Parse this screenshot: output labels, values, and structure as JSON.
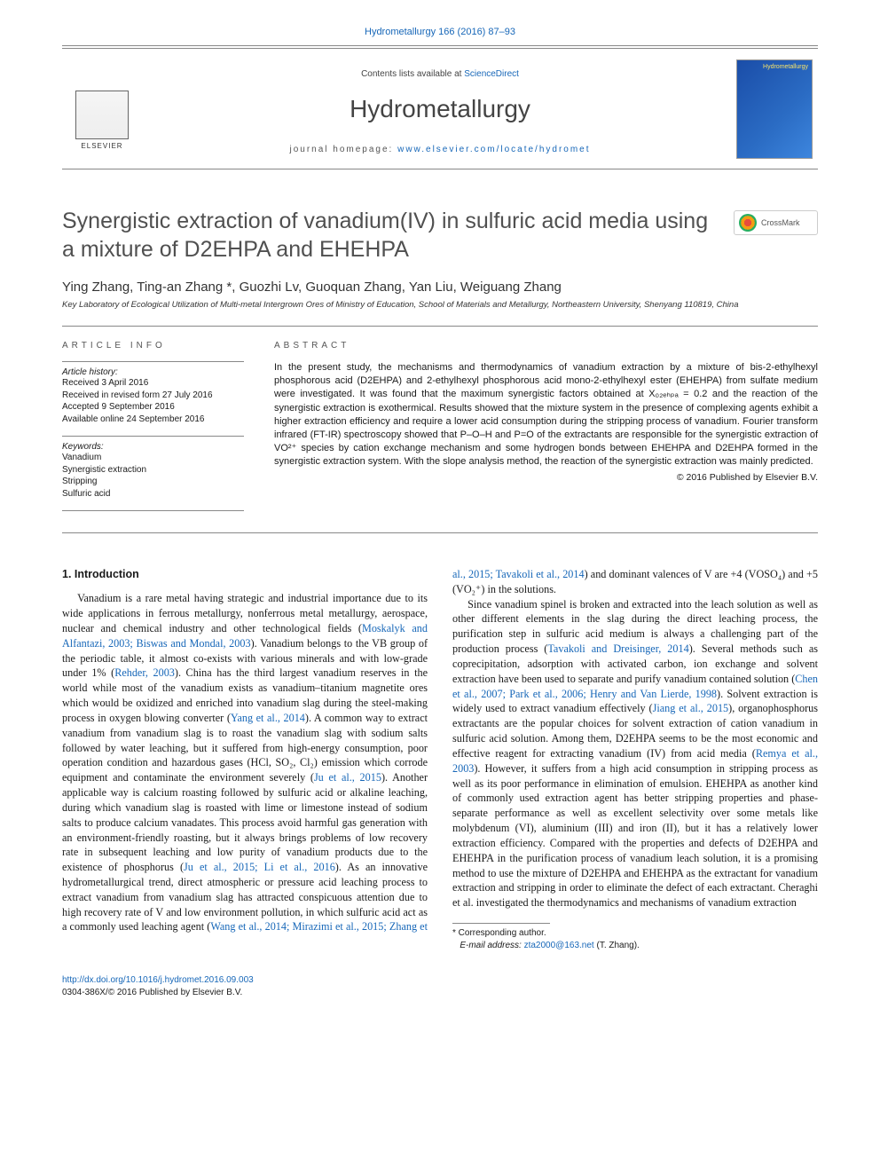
{
  "colors": {
    "link": "#1767b8",
    "body_text": "#1a1a1a",
    "muted": "#505050",
    "rule": "#888888",
    "background": "#ffffff",
    "cover_gradient": [
      "#1a4da8",
      "#2b6cc4",
      "#3d86de"
    ],
    "cover_label": "#f7e36a"
  },
  "typography": {
    "body_font": "Georgia, serif",
    "ui_font": "Arial, sans-serif",
    "title_size_pt": 19,
    "journal_name_size_pt": 21,
    "body_size_pt": 9,
    "abstract_size_pt": 8,
    "small_size_pt": 7
  },
  "top_link": "Hydrometallurgy 166 (2016) 87–93",
  "masthead": {
    "contents_prefix": "Contents lists available at ",
    "contents_link": "ScienceDirect",
    "journal_name": "Hydrometallurgy",
    "homepage_prefix": "journal homepage: ",
    "homepage_link": "www.elsevier.com/locate/hydromet",
    "publisher_logo_text": "ELSEVIER",
    "cover_label": "Hydrometallurgy"
  },
  "crossmark_label": "CrossMark",
  "title": "Synergistic extraction of vanadium(IV) in sulfuric acid media using a mixture of D2EHPA and EHEHPA",
  "authors": "Ying Zhang, Ting-an Zhang *, Guozhi Lv, Guoquan Zhang, Yan Liu, Weiguang Zhang",
  "affiliation": "Key Laboratory of Ecological Utilization of Multi-metal Intergrown Ores of Ministry of Education, School of Materials and Metallurgy, Northeastern University, Shenyang 110819, China",
  "article_info": {
    "heading": "article info",
    "history_label": "Article history:",
    "history": [
      "Received 3 April 2016",
      "Received in revised form 27 July 2016",
      "Accepted 9 September 2016",
      "Available online 24 September 2016"
    ],
    "keywords_label": "Keywords:",
    "keywords": [
      "Vanadium",
      "Synergistic extraction",
      "Stripping",
      "Sulfuric acid"
    ]
  },
  "abstract": {
    "heading": "abstract",
    "text": "In the present study, the mechanisms and thermodynamics of vanadium extraction by a mixture of bis-2-ethylhexyl phosphorous acid (D2EHPA) and 2-ethylhexyl phosphorous acid mono-2-ethylhexyl ester (EHEHPA) from sulfate medium were investigated. It was found that the maximum synergistic factors obtained at X₀₂ₑₕₚₐ = 0.2 and the reaction of the synergistic extraction is exothermical. Results showed that the mixture system in the presence of complexing agents exhibit a higher extraction efficiency and require a lower acid consumption during the stripping process of vanadium. Fourier transform infrared (FT-IR) spectroscopy showed that P–O–H and P=O of the extractants are responsible for the synergistic extraction of VO²⁺ species by cation exchange mechanism and some hydrogen bonds between EHEHPA and D2EHPA formed in the synergistic extraction system. With the slope analysis method, the reaction of the synergistic extraction was mainly predicted.",
    "copyright": "© 2016 Published by Elsevier B.V."
  },
  "section1": {
    "heading": "1. Introduction",
    "p1_a": "Vanadium is a rare metal having strategic and industrial importance due to its wide applications in ferrous metallurgy, nonferrous metal metallurgy, aerospace, nuclear and chemical industry and other technological fields (",
    "p1_ref1": "Moskalyk and Alfantazi, 2003; Biswas and Mondal, 2003",
    "p1_b": "). Vanadium belongs to the VB group of the periodic table, it almost co-exists with various minerals and with low-grade under 1% (",
    "p1_ref2": "Rehder, 2003",
    "p1_c": "). China has the third largest vanadium reserves in the world while most of the vanadium exists as vanadium–titanium magnetite ores which would be oxidized and enriched into vanadium slag during the steel-making process in oxygen blowing converter (",
    "p1_ref3": "Yang et al., 2014",
    "p1_d": "). A common way to extract vanadium from vanadium slag is to roast the vanadium slag with sodium salts followed by water leaching, but it suffered from high-energy consumption, poor operation condition and hazardous gases (HCl, SO₂, Cl₂) emission which corrode equipment and contaminate the environment severely (",
    "p1_ref4": "Ju et al., 2015",
    "p1_e": "). Another applicable way is calcium roasting followed by sulfuric acid or alkaline leaching, during which vanadium slag is roasted with lime or limestone instead of sodium salts to produce calcium vanadates. This process avoid harmful gas generation with an environment-friendly roasting, but it always brings problems of low recovery rate in subsequent leaching and low purity of vanadium products due to the existence of phosphorus (",
    "p1_ref5": "Ju et al., 2015; Li et al., 2016",
    "p1_f": "). As an innovative hydrometallurgical trend, direct atmospheric or pressure acid leaching process to extract vanadium from vanadium slag has attracted conspicuous attention due to high recovery rate of V and low environment pollution, in which sulfuric acid act as a commonly used leaching agent (",
    "p1_ref6": "Wang et al., 2014; Mirazimi et al., 2015; Zhang et al., 2015; Tavakoli et al., 2014",
    "p1_g": ") and dominant valences of V are +4 (VOSO₄) and +5 (VO₂⁺) in the solutions.",
    "p2_a": "Since vanadium spinel is broken and extracted into the leach solution as well as other different elements in the slag during the direct leaching process, the purification step in sulfuric acid medium is always a challenging part of the production process (",
    "p2_ref1": "Tavakoli and Dreisinger, 2014",
    "p2_b": "). Several methods such as coprecipitation, adsorption with activated carbon, ion exchange and solvent extraction have been used to separate and purify vanadium contained solution (",
    "p2_ref2": "Chen et al., 2007; Park et al., 2006; Henry and Van Lierde, 1998",
    "p2_c": "). Solvent extraction is widely used to extract vanadium effectively (",
    "p2_ref3": "Jiang et al., 2015",
    "p2_d": "), organophosphorus extractants are the popular choices for solvent extraction of cation vanadium in sulfuric acid solution. Among them, D2EHPA seems to be the most economic and effective reagent for extracting vanadium (IV) from acid media (",
    "p2_ref4": "Remya et al., 2003",
    "p2_e": "). However, it suffers from a high acid consumption in stripping process as well as its poor performance in elimination of emulsion. EHEHPA as another kind of commonly used extraction agent has better stripping properties and phase-separate performance as well as excellent selectivity over some metals like molybdenum (VI), aluminium (III) and iron (II), but it has a relatively lower extraction efficiency. Compared with the properties and defects of D2EHPA and EHEHPA in the purification process of vanadium leach solution, it is a promising method to use the mixture of D2EHPA and EHEHPA as the extractant for vanadium extraction and stripping in order to eliminate the defect of each extractant. Cheraghi et al. investigated the thermodynamics and mechanisms of vanadium extraction"
  },
  "footnote": {
    "corr_label": "* Corresponding author.",
    "email_label": "E-mail address:",
    "email": "zta2000@163.net",
    "email_person": "(T. Zhang)."
  },
  "footer": {
    "doi": "http://dx.doi.org/10.1016/j.hydromet.2016.09.003",
    "issn_line": "0304-386X/© 2016 Published by Elsevier B.V."
  }
}
